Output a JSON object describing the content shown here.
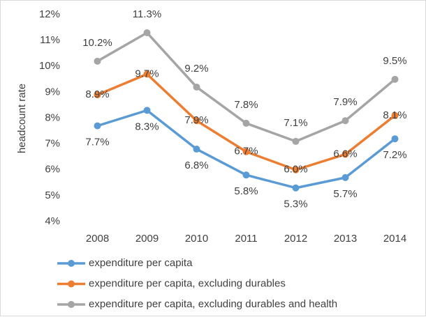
{
  "chart_data": {
    "type": "line",
    "y_label": "headcount rate",
    "categories": [
      "2008",
      "2009",
      "2010",
      "2011",
      "2012",
      "2013",
      "2014"
    ],
    "series": [
      {
        "name": "expenditure per capita",
        "color": "#5b9bd5",
        "values": [
          7.7,
          8.3,
          6.8,
          5.8,
          5.3,
          5.7,
          7.2
        ],
        "value_labels": [
          "7.7%",
          "8.3%",
          "6.8%",
          "5.8%",
          "5.3%",
          "5.7%",
          "7.2%"
        ]
      },
      {
        "name": "expenditure per capita, excluding durables",
        "color": "#ed7d31",
        "values": [
          8.9,
          9.7,
          7.9,
          6.7,
          6.0,
          6.6,
          8.1
        ],
        "value_labels": [
          "8.9%",
          "9.7%",
          "7.9%",
          "6.7%",
          "6.0%",
          "6.6%",
          "8.1%"
        ]
      },
      {
        "name": "expenditure per capita, excluding durables and health",
        "color": "#a5a5a5",
        "values": [
          10.2,
          11.3,
          9.2,
          7.8,
          7.1,
          7.9,
          9.5
        ],
        "value_labels": [
          "10.2%",
          "11.3%",
          "9.2%",
          "7.8%",
          "7.1%",
          "7.9%",
          "9.5%"
        ]
      }
    ],
    "ylim": [
      4,
      12
    ],
    "yticks": [
      {
        "value": 4,
        "label": "4%"
      },
      {
        "value": 5,
        "label": "5%"
      },
      {
        "value": 6,
        "label": "6%"
      },
      {
        "value": 7,
        "label": "7%"
      },
      {
        "value": 8,
        "label": "8%"
      },
      {
        "value": 9,
        "label": "9%"
      },
      {
        "value": 10,
        "label": "10%"
      },
      {
        "value": 11,
        "label": "11%"
      },
      {
        "value": 12,
        "label": "12%"
      }
    ],
    "grid": false,
    "legend": "bottom"
  }
}
